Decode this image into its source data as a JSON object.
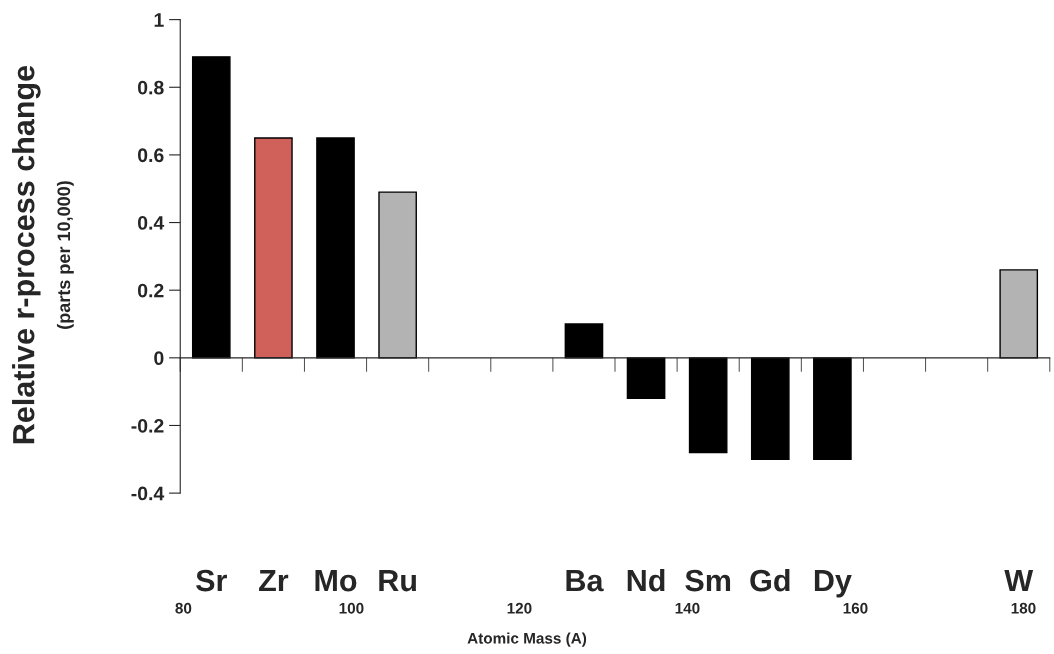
{
  "chart_data": {
    "type": "bar",
    "ylabel": "Relative r-process change",
    "xlabel": "Atomic Mass (A)",
    "categories": [
      "Sr",
      "Zr",
      "Mo",
      "Ru",
      null,
      null,
      "Ba",
      "Nd",
      "Sm",
      "Gd",
      "Dy",
      null,
      null,
      "W"
    ],
    "values": [
      0.89,
      0.65,
      0.65,
      0.49,
      null,
      null,
      0.1,
      -0.12,
      -0.28,
      -0.3,
      -0.3,
      null,
      null,
      0.26
    ],
    "colors": [
      "#000000",
      "#d0605a",
      "#000000",
      "#b3b3b3",
      null,
      null,
      "#000000",
      "#000000",
      "#000000",
      "#000000",
      "#000000",
      null,
      null,
      "#b3b3b3"
    ],
    "ylim": [
      -0.4,
      1
    ],
    "yticks": [
      -0.4,
      -0.2,
      0,
      0.2,
      0.4,
      0.6,
      0.8,
      1
    ],
    "annotations": [
      "(parts per 10,000)",
      "80",
      "100",
      "120",
      "140",
      "160",
      "180"
    ]
  }
}
